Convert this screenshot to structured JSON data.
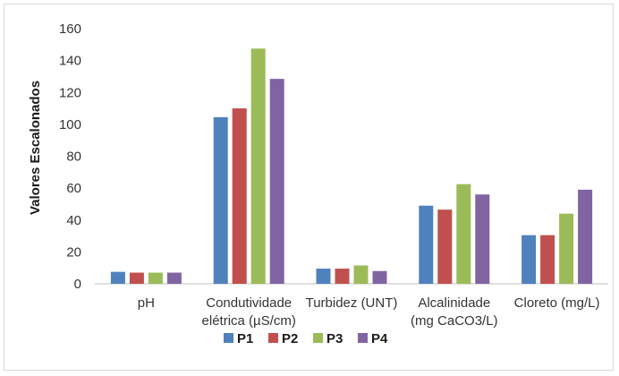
{
  "chart_data": {
    "type": "bar",
    "title": "",
    "xlabel": "",
    "ylabel": "Valores Escalonados",
    "ylim": [
      0,
      160
    ],
    "yticks": [
      0,
      20,
      40,
      60,
      80,
      100,
      120,
      140,
      160
    ],
    "grid": false,
    "legend_position": "bottom",
    "categories": [
      [
        "pH"
      ],
      [
        "Condutividade",
        "elétrica (µS/cm)"
      ],
      [
        "Turbidez (UNT)"
      ],
      [
        "Alcalinidade",
        "(mg CaCO3/L)"
      ],
      [
        "Cloreto (mg/L)"
      ]
    ],
    "series": [
      {
        "name": "P1",
        "color": "#4f81bd",
        "values": [
          7.5,
          104.5,
          9.5,
          49,
          30.5
        ]
      },
      {
        "name": "P2",
        "color": "#c0504d",
        "values": [
          7,
          110,
          9.5,
          46.5,
          30.5
        ]
      },
      {
        "name": "P3",
        "color": "#9bbb59",
        "values": [
          7,
          147.5,
          11.5,
          62.5,
          44
        ]
      },
      {
        "name": "P4",
        "color": "#8064a2",
        "values": [
          7,
          128.5,
          8,
          56,
          59
        ]
      }
    ]
  }
}
